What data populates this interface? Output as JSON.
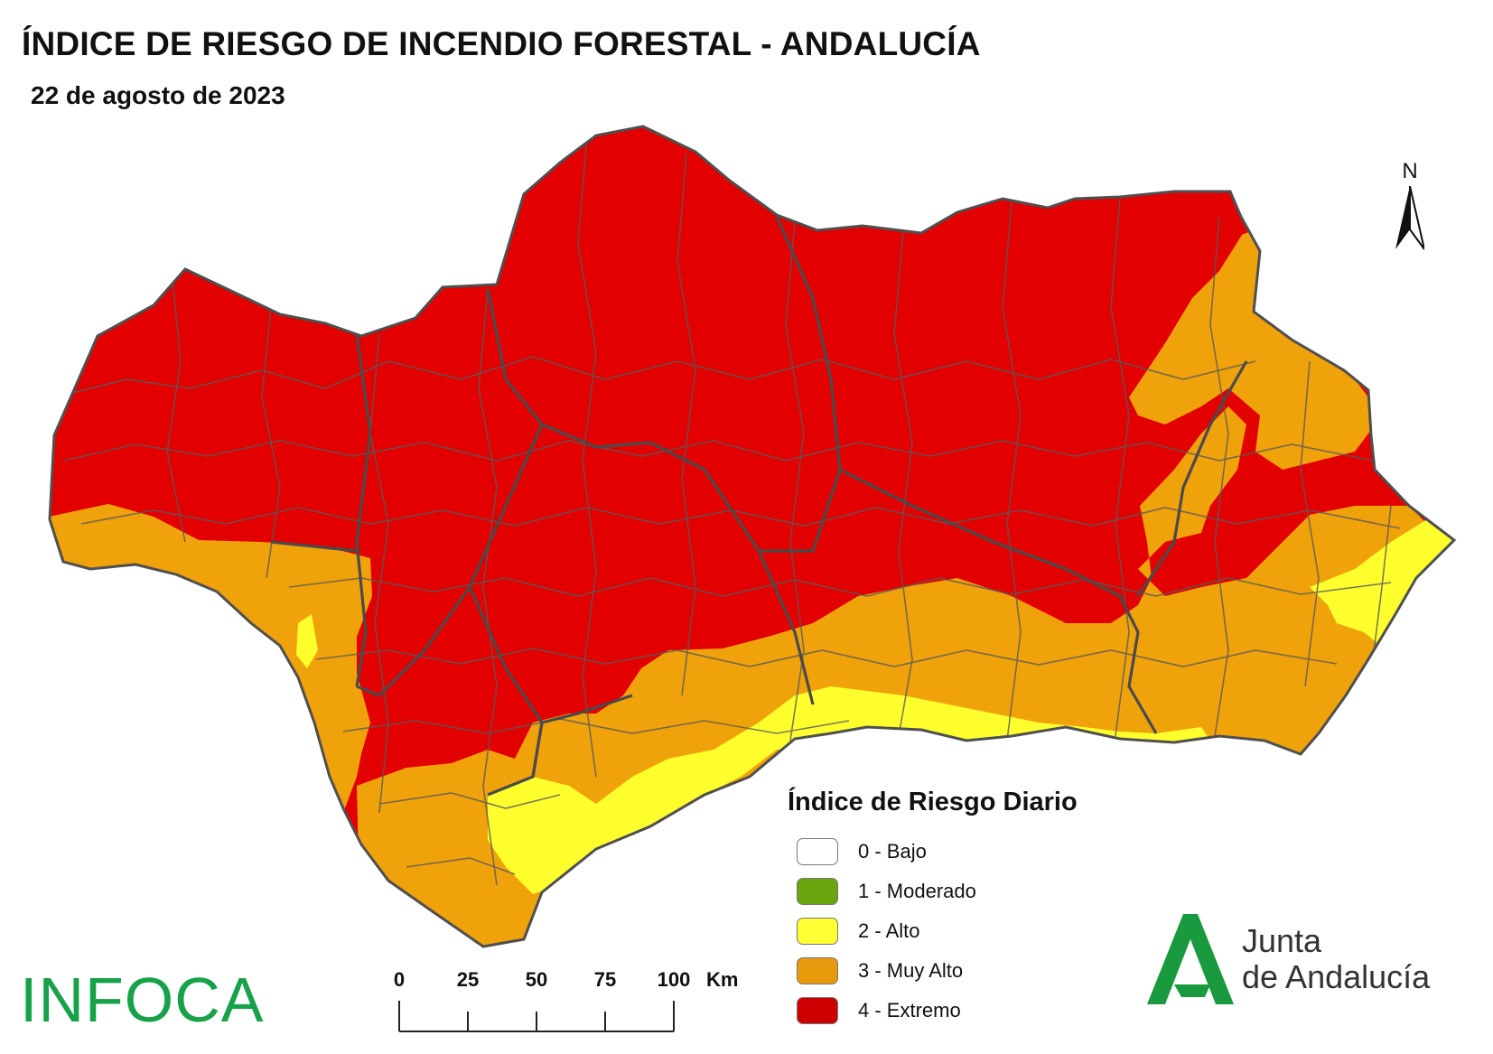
{
  "title": "ÍNDICE DE RIESGO DE INCENDIO FORESTAL - ANDALUCÍA",
  "date": "22 de agosto de 2023",
  "north_label": "N",
  "legend": {
    "title": "Índice de Riesgo Diario",
    "items": [
      {
        "label": "0 - Bajo",
        "color": "#ffffff"
      },
      {
        "label": "1 - Moderado",
        "color": "#6aa50e"
      },
      {
        "label": "2 - Alto",
        "color": "#ffff33"
      },
      {
        "label": "3 - Muy Alto",
        "color": "#e8990c"
      },
      {
        "label": "4 - Extremo",
        "color": "#cc0000"
      }
    ]
  },
  "scale_bar": {
    "ticks": [
      "0",
      "25",
      "50",
      "75",
      "100"
    ],
    "unit": "Km"
  },
  "map": {
    "risk_colors": {
      "extremo": "#e30000",
      "muy_alto": "#f0a20a",
      "alto": "#ffff2e",
      "moderado": "#5fa114",
      "border": "#5a5a5a"
    }
  },
  "logos": {
    "infoca": "INFOCA",
    "junta_line1": "Junta",
    "junta_line2": "de Andalucía",
    "junta_color": "#1a9a3e"
  }
}
